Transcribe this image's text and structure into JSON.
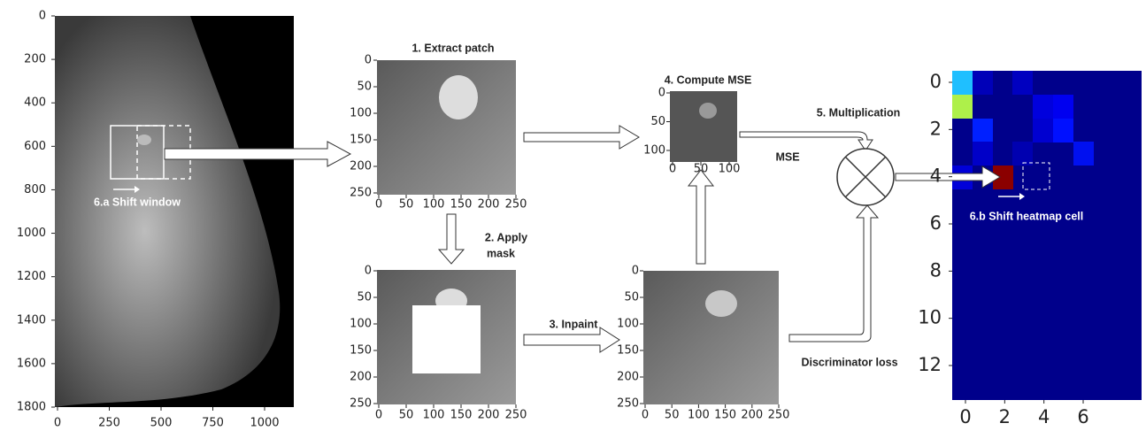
{
  "panels": {
    "mammogram": {
      "xticks": [
        0,
        250,
        500,
        750,
        1000
      ],
      "yticks": [
        0,
        200,
        400,
        600,
        800,
        1000,
        1200,
        1400,
        1600,
        1800
      ]
    },
    "patch": {
      "title": "1. Extract patch",
      "xticks": [
        0,
        50,
        100,
        150,
        200,
        250
      ],
      "yticks": [
        0,
        50,
        100,
        150,
        200,
        250
      ]
    },
    "masked_patch": {
      "xticks": [
        0,
        50,
        100,
        150,
        200,
        250
      ],
      "yticks": [
        0,
        50,
        100,
        150,
        200,
        250
      ]
    },
    "inpainted_patch": {
      "xticks": [
        0,
        50,
        100,
        150,
        200,
        250
      ],
      "yticks": [
        0,
        50,
        100,
        150,
        200,
        250
      ]
    },
    "mse_map": {
      "title": "4. Compute MSE",
      "xticks": [
        0,
        50,
        100
      ],
      "yticks": [
        0,
        50,
        100
      ]
    },
    "heatmap": {
      "xticks": [
        0,
        2,
        4,
        6
      ],
      "yticks": [
        0,
        2,
        4,
        6,
        8,
        10,
        12
      ]
    }
  },
  "steps": {
    "apply_mask": [
      "2. Apply",
      "mask"
    ],
    "inpaint": "3. Inpaint",
    "multiplication": "5. Multiplication",
    "mse": "MSE",
    "discriminator_loss": "Discriminator loss",
    "shift_window": "6.a Shift window",
    "shift_heatmap_cell": "6.b Shift heatmap cell"
  }
}
